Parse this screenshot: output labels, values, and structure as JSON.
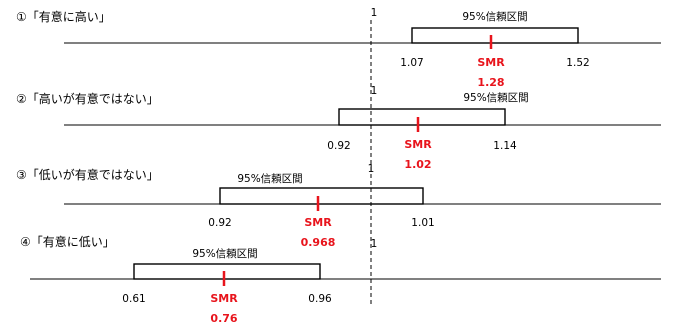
{
  "reference": {
    "label": "1",
    "value": 1
  },
  "panels": [
    {
      "title": "①「有意に高い」",
      "ci_label": "95%信頼区間",
      "lower": {
        "value": 1.07,
        "label": "1.07"
      },
      "upper": {
        "value": 1.52,
        "label": "1.52"
      },
      "smr_label": "SMR",
      "smr": {
        "value": 1.28,
        "label": "1.28"
      }
    },
    {
      "title": "②「高いが有意ではない」",
      "ci_label": "95%信頼区間",
      "lower": {
        "value": 0.92,
        "label": "0.92"
      },
      "upper": {
        "value": 1.14,
        "label": "1.14"
      },
      "smr_label": "SMR",
      "smr": {
        "value": 1.02,
        "label": "1.02"
      }
    },
    {
      "title": "③「低いが有意ではない」",
      "ci_label": "95%信頼区間",
      "lower": {
        "value": 0.92,
        "label": "0.92"
      },
      "upper": {
        "value": 1.01,
        "label": "1.01"
      },
      "smr_label": "SMR",
      "smr": {
        "value": 0.968,
        "label": "0.968"
      }
    },
    {
      "title": "④「有意に低い」",
      "ci_label": "95%信頼区間",
      "lower": {
        "value": 0.61,
        "label": "0.61"
      },
      "upper": {
        "value": 0.96,
        "label": "0.96"
      },
      "smr_label": "SMR",
      "smr": {
        "value": 0.76,
        "label": "0.76"
      }
    }
  ],
  "colors": {
    "smr": "#e8141c",
    "lines": "#000000"
  }
}
